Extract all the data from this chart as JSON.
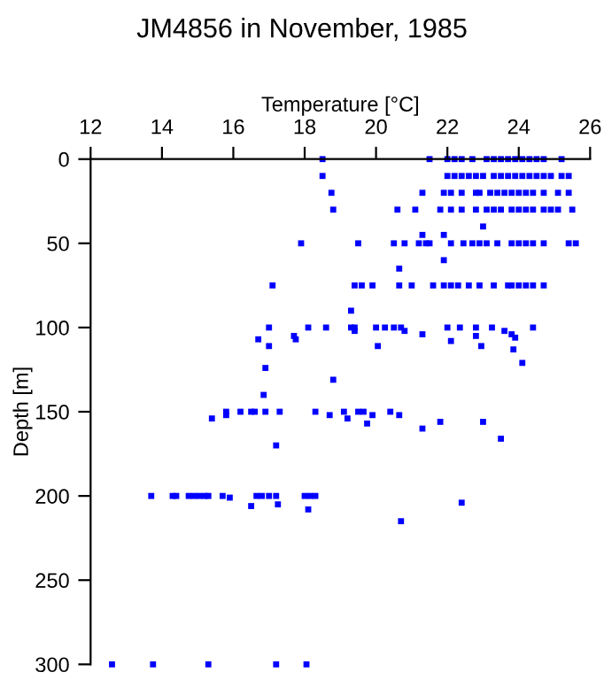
{
  "chart_data": {
    "type": "scatter",
    "title": "JM4856 in November, 1985",
    "xlabel": "Temperature [°C]",
    "ylabel": "Depth [m]",
    "xlim": [
      12,
      26
    ],
    "xticks": [
      12,
      14,
      16,
      18,
      20,
      22,
      24,
      26
    ],
    "ylim": [
      300,
      0
    ],
    "yticks": [
      0,
      50,
      100,
      150,
      200,
      250,
      300
    ],
    "grid": false,
    "legend": false,
    "marker": "square",
    "series": [
      {
        "color": "#0000ff",
        "x": [
          18.5,
          21.5,
          22.0,
          22.2,
          22.4,
          22.7,
          23.1,
          23.3,
          23.5,
          23.7,
          23.9,
          24.1,
          24.3,
          24.5,
          24.7,
          25.2,
          18.5,
          22.0,
          22.2,
          22.4,
          22.6,
          22.8,
          23.0,
          23.3,
          23.5,
          23.7,
          23.9,
          24.1,
          24.3,
          24.5,
          24.7,
          24.9,
          25.2,
          25.4,
          18.75,
          21.3,
          21.9,
          22.1,
          22.4,
          22.8,
          22.9,
          23.2,
          23.4,
          23.6,
          23.8,
          24.0,
          24.2,
          24.4,
          24.7,
          25.1,
          25.4,
          18.8,
          20.6,
          21.1,
          21.8,
          22.1,
          22.4,
          22.8,
          23.1,
          23.3,
          23.5,
          23.8,
          24.0,
          24.2,
          24.4,
          24.7,
          24.9,
          25.1,
          25.5,
          23.0,
          21.3,
          21.9,
          17.9,
          19.5,
          20.5,
          20.8,
          21.2,
          21.4,
          21.5,
          22.1,
          22.45,
          22.7,
          22.9,
          23.1,
          23.4,
          23.8,
          24.0,
          24.2,
          24.4,
          24.7,
          25.4,
          25.6,
          21.9,
          20.65,
          17.1,
          19.4,
          19.6,
          19.9,
          20.65,
          21.0,
          21.6,
          21.9,
          22.1,
          22.3,
          22.6,
          22.9,
          23.3,
          23.7,
          23.8,
          24.0,
          24.2,
          24.4,
          24.7,
          19.3,
          17.0,
          18.1,
          18.6,
          19.3,
          19.4,
          20.0,
          20.25,
          20.5,
          20.7,
          22.0,
          22.35,
          22.8,
          23.25,
          24.4,
          19.4,
          20.8,
          23.6,
          21.3,
          23.8,
          17.7,
          22.8,
          23.9,
          16.7,
          17.75,
          22.1,
          17.0,
          20.05,
          22.95,
          23.85,
          24.1,
          16.9,
          18.8,
          16.85,
          15.8,
          16.2,
          16.5,
          16.6,
          16.9,
          17.3,
          18.3,
          19.1,
          19.5,
          19.65,
          20.4,
          15.8,
          18.7,
          19.9,
          20.65,
          15.4,
          19.2,
          21.8,
          19.75,
          23.0,
          21.3,
          23.5,
          17.2,
          13.7,
          14.3,
          14.4,
          14.75,
          14.9,
          15.05,
          15.2,
          15.3,
          15.7,
          16.65,
          16.8,
          17.0,
          17.2,
          18.0,
          18.15,
          18.3,
          15.9,
          22.4,
          17.25,
          16.5,
          18.1,
          20.7,
          12.6,
          13.75,
          15.3,
          17.2,
          18.05
        ],
        "values": [
          0,
          0,
          0,
          0,
          0,
          0,
          0,
          0,
          0,
          0,
          0,
          0,
          0,
          0,
          0,
          0,
          10,
          10,
          10,
          10,
          10,
          10,
          10,
          10,
          10,
          10,
          10,
          10,
          10,
          10,
          10,
          10,
          10,
          10,
          20,
          20,
          20,
          20,
          20,
          20,
          20,
          20,
          20,
          20,
          20,
          20,
          20,
          20,
          20,
          20,
          20,
          30,
          30,
          30,
          30,
          30,
          30,
          30,
          30,
          30,
          30,
          30,
          30,
          30,
          30,
          30,
          30,
          30,
          30,
          40,
          45,
          45,
          50,
          50,
          50,
          50,
          50,
          50,
          50,
          50,
          50,
          50,
          50,
          50,
          50,
          50,
          50,
          50,
          50,
          50,
          50,
          50,
          60,
          65,
          75,
          75,
          75,
          75,
          75,
          75,
          75,
          75,
          75,
          75,
          75,
          75,
          75,
          75,
          75,
          75,
          75,
          75,
          75,
          90,
          100,
          100,
          100,
          100,
          100,
          100,
          100,
          100,
          100,
          100,
          100,
          100,
          100,
          100,
          102,
          102,
          102,
          104,
          104,
          105,
          105,
          106,
          107,
          107,
          108,
          111,
          111,
          111,
          113,
          121,
          124,
          131,
          140,
          150,
          150,
          150,
          150,
          150,
          150,
          150,
          150,
          150,
          150,
          150,
          152,
          152,
          152,
          152,
          154,
          154,
          156,
          157,
          156,
          160,
          166,
          170,
          200,
          200,
          200,
          200,
          200,
          200,
          200,
          200,
          200,
          200,
          200,
          200,
          200,
          200,
          200,
          200,
          201,
          204,
          205,
          206,
          208,
          215,
          300,
          300,
          300,
          300,
          300
        ]
      }
    ]
  }
}
